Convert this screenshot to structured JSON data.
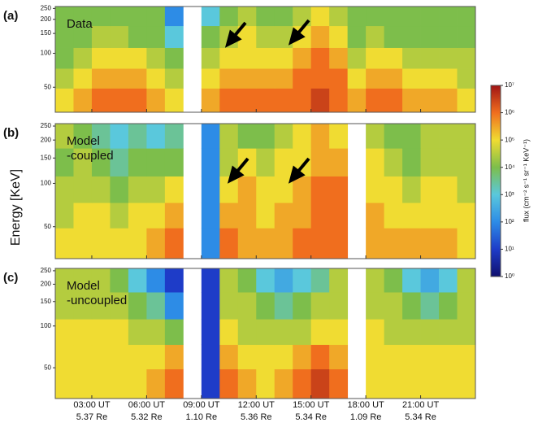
{
  "chart_data": {
    "type": "heatmap",
    "ylabel": "Energy [KeV]",
    "ylim": [
      30,
      260
    ],
    "yscale": "log",
    "yticks": [
      50,
      100,
      150,
      200,
      250
    ],
    "xlim": [
      1,
      24
    ],
    "x": [
      1.5,
      2.5,
      3.5,
      4.5,
      5.5,
      6.5,
      7.5,
      8.5,
      9.5,
      10.5,
      11.5,
      12.5,
      13.5,
      14.5,
      15.5,
      16.5,
      17.5,
      18.5,
      19.5,
      20.5,
      21.5,
      22.5,
      23.5
    ],
    "y": [
      40,
      60,
      90,
      140,
      220
    ],
    "xticks": [
      {
        "value": 3,
        "label": "03:00 UT"
      },
      {
        "value": 6,
        "label": "06:00 UT"
      },
      {
        "value": 9,
        "label": "09:00 UT"
      },
      {
        "value": 12,
        "label": "12:00 UT"
      },
      {
        "value": 15,
        "label": "15:00 UT"
      },
      {
        "value": 18,
        "label": "18:00 UT"
      },
      {
        "value": 21,
        "label": "21:00 UT"
      }
    ],
    "xtick_sublabels": [
      "5.37 Re",
      "5.32 Re",
      "1.10 Re",
      "5.36 Re",
      "5.34 Re",
      "1.09 Re",
      "5.34 Re"
    ],
    "colorbar": {
      "label": "flux (cm⁻² s⁻¹ sr⁻¹ KeV⁻¹)",
      "lim": [
        1,
        10000000
      ],
      "scale": "log",
      "ticks": [
        {
          "value": 1,
          "label": "10⁰"
        },
        {
          "value": 10,
          "label": "10¹"
        },
        {
          "value": 100,
          "label": "10²"
        },
        {
          "value": 1000,
          "label": "10³"
        },
        {
          "value": 10000,
          "label": "10⁴"
        },
        {
          "value": 100000,
          "label": "10⁵"
        },
        {
          "value": 1000000,
          "label": "10⁶"
        },
        {
          "value": 10000000,
          "label": "10⁷"
        }
      ],
      "colormap": [
        "#10106e",
        "#1e3cc8",
        "#2d8ce6",
        "#5ac8dc",
        "#7dbe4b",
        "#f0dc32",
        "#f06e1e",
        "#a01414"
      ]
    },
    "panels": [
      {
        "label": "(a)",
        "title_lines": [
          "Data"
        ],
        "z": [
          [
            100000.0,
            300000.0,
            1000000.0,
            1000000.0,
            1000000.0,
            300000.0,
            100000.0,
            null,
            300000.0,
            1000000.0,
            1000000.0,
            1000000.0,
            1000000.0,
            1000000.0,
            3000000.0,
            1000000.0,
            300000.0,
            1000000.0,
            1000000.0,
            300000.0,
            300000.0,
            300000.0,
            100000.0
          ],
          [
            30000.0,
            100000.0,
            300000.0,
            300000.0,
            300000.0,
            100000.0,
            30000.0,
            null,
            100000.0,
            300000.0,
            300000.0,
            300000.0,
            300000.0,
            1000000.0,
            1000000.0,
            1000000.0,
            100000.0,
            300000.0,
            300000.0,
            100000.0,
            100000.0,
            100000.0,
            30000.0
          ],
          [
            10000.0,
            30000.0,
            100000.0,
            100000.0,
            100000.0,
            30000.0,
            10000.0,
            null,
            30000.0,
            100000.0,
            100000.0,
            100000.0,
            100000.0,
            300000.0,
            1000000.0,
            300000.0,
            30000.0,
            100000.0,
            100000.0,
            30000.0,
            30000.0,
            30000.0,
            30000.0
          ],
          [
            10000.0,
            10000.0,
            30000.0,
            30000.0,
            10000.0,
            10000.0,
            1000.0,
            null,
            10000.0,
            30000.0,
            100000.0,
            30000.0,
            30000.0,
            100000.0,
            300000.0,
            100000.0,
            10000.0,
            30000.0,
            10000.0,
            10000.0,
            10000.0,
            10000.0,
            10000.0
          ],
          [
            10000.0,
            10000.0,
            10000.0,
            10000.0,
            10000.0,
            10000.0,
            100.0,
            null,
            1000.0,
            10000.0,
            30000.0,
            10000.0,
            10000.0,
            30000.0,
            100000.0,
            30000.0,
            10000.0,
            10000.0,
            10000.0,
            10000.0,
            10000.0,
            10000.0,
            10000.0
          ]
        ]
      },
      {
        "label": "(b)",
        "title_lines": [
          "Model",
          "-coupled"
        ],
        "z": [
          [
            100000.0,
            100000.0,
            100000.0,
            100000.0,
            100000.0,
            300000.0,
            1000000.0,
            null,
            100.0,
            1000000.0,
            300000.0,
            300000.0,
            300000.0,
            1000000.0,
            1000000.0,
            1000000.0,
            null,
            300000.0,
            300000.0,
            300000.0,
            300000.0,
            300000.0,
            100000.0
          ],
          [
            30000.0,
            100000.0,
            100000.0,
            30000.0,
            100000.0,
            100000.0,
            300000.0,
            null,
            100.0,
            300000.0,
            300000.0,
            100000.0,
            300000.0,
            300000.0,
            1000000.0,
            1000000.0,
            null,
            300000.0,
            100000.0,
            100000.0,
            100000.0,
            100000.0,
            100000.0
          ],
          [
            30000.0,
            30000.0,
            30000.0,
            10000.0,
            30000.0,
            30000.0,
            100000.0,
            null,
            100.0,
            100000.0,
            300000.0,
            100000.0,
            100000.0,
            300000.0,
            1000000.0,
            1000000.0,
            null,
            100000.0,
            100000.0,
            30000.0,
            100000.0,
            100000.0,
            30000.0
          ],
          [
            10000.0,
            30000.0,
            10000.0,
            3000.0,
            10000.0,
            10000.0,
            10000.0,
            null,
            100.0,
            30000.0,
            100000.0,
            30000.0,
            100000.0,
            100000.0,
            300000.0,
            300000.0,
            null,
            100000.0,
            30000.0,
            10000.0,
            30000.0,
            30000.0,
            30000.0
          ],
          [
            30000.0,
            10000.0,
            3000.0,
            1000.0,
            3000.0,
            1000.0,
            3000.0,
            null,
            100.0,
            30000.0,
            10000.0,
            10000.0,
            30000.0,
            100000.0,
            300000.0,
            100000.0,
            null,
            30000.0,
            10000.0,
            10000.0,
            30000.0,
            30000.0,
            30000.0
          ]
        ]
      },
      {
        "label": "(c)",
        "title_lines": [
          "Model",
          "-uncoupled"
        ],
        "z": [
          [
            100000.0,
            100000.0,
            100000.0,
            100000.0,
            100000.0,
            300000.0,
            1000000.0,
            null,
            10.0,
            1000000.0,
            300000.0,
            100000.0,
            300000.0,
            1000000.0,
            3000000.0,
            1000000.0,
            null,
            100000.0,
            100000.0,
            100000.0,
            100000.0,
            100000.0,
            100000.0
          ],
          [
            100000.0,
            100000.0,
            100000.0,
            100000.0,
            100000.0,
            100000.0,
            300000.0,
            null,
            10.0,
            300000.0,
            100000.0,
            100000.0,
            100000.0,
            300000.0,
            1000000.0,
            300000.0,
            null,
            100000.0,
            100000.0,
            100000.0,
            100000.0,
            100000.0,
            100000.0
          ],
          [
            100000.0,
            100000.0,
            100000.0,
            100000.0,
            30000.0,
            30000.0,
            10000.0,
            null,
            10.0,
            100000.0,
            30000.0,
            30000.0,
            30000.0,
            30000.0,
            100000.0,
            100000.0,
            null,
            100000.0,
            30000.0,
            30000.0,
            30000.0,
            30000.0,
            30000.0
          ],
          [
            30000.0,
            30000.0,
            30000.0,
            30000.0,
            10000.0,
            3000.0,
            100.0,
            null,
            10.0,
            30000.0,
            30000.0,
            10000.0,
            3000.0,
            10000.0,
            30000.0,
            30000.0,
            null,
            30000.0,
            30000.0,
            10000.0,
            3000.0,
            10000.0,
            30000.0
          ],
          [
            30000.0,
            30000.0,
            30000.0,
            10000.0,
            1000.0,
            100.0,
            10.0,
            null,
            10.0,
            30000.0,
            10000.0,
            1000.0,
            300.0,
            1000.0,
            3000.0,
            30000.0,
            null,
            30000.0,
            10000.0,
            1000.0,
            300.0,
            1000.0,
            30000.0
          ]
        ]
      }
    ]
  }
}
